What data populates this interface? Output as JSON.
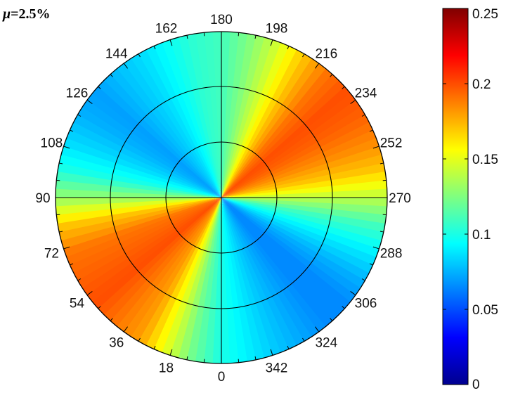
{
  "chart_data": {
    "type": "heatmap",
    "subtype": "polar",
    "title": {
      "symbol": "μ",
      "text": "=2.5%"
    },
    "angle_labels": [
      "0",
      "18",
      "36",
      "54",
      "72",
      "90",
      "108",
      "126",
      "144",
      "162",
      "180",
      "198",
      "216",
      "234",
      "252",
      "270",
      "288",
      "306",
      "324",
      "342"
    ],
    "angle_direction": "clockwise",
    "angle_zero_position": "bottom",
    "rings": 3,
    "colorbar": {
      "min": 0,
      "max": 0.25,
      "ticks": [
        "0.25",
        "0.2",
        "0.15",
        "0.1",
        "0.05",
        "0"
      ],
      "tick_values": [
        0.25,
        0.2,
        0.15,
        0.1,
        0.05,
        0
      ],
      "colormap": "jet",
      "placement": "right"
    },
    "azimuth_profile": {
      "angles": [
        0,
        10,
        20,
        30,
        40,
        50,
        60,
        70,
        80,
        90,
        100,
        110,
        120,
        130,
        140,
        150,
        160,
        170,
        180,
        190,
        200,
        210,
        220,
        230,
        240,
        250,
        260,
        270,
        280,
        290,
        300,
        310,
        320,
        330,
        340,
        350
      ],
      "values": [
        0.1,
        0.12,
        0.15,
        0.18,
        0.19,
        0.2,
        0.195,
        0.19,
        0.17,
        0.13,
        0.1,
        0.085,
        0.075,
        0.07,
        0.078,
        0.085,
        0.095,
        0.105,
        0.11,
        0.125,
        0.145,
        0.17,
        0.19,
        0.2,
        0.195,
        0.185,
        0.17,
        0.14,
        0.11,
        0.09,
        0.075,
        0.065,
        0.065,
        0.072,
        0.08,
        0.09
      ]
    }
  }
}
